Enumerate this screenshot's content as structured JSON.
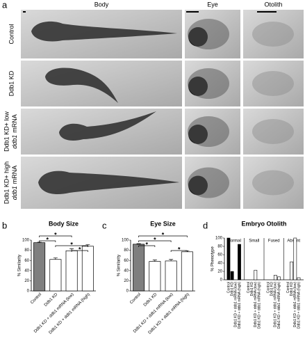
{
  "panel_a": {
    "label": "a",
    "columns": [
      "Body",
      "Eye",
      "Otolith"
    ],
    "rows": [
      {
        "text": "Control"
      },
      {
        "text": "Ddb1 KD"
      },
      {
        "text": "Ddb1 KD+ low",
        "italic": "ddb1",
        "rest": "mRNA"
      },
      {
        "text": "Ddb1 KD+ high",
        "italic": "ddb1",
        "rest": "mRNA"
      }
    ]
  },
  "chart_data": [
    {
      "type": "bar",
      "panel": "b",
      "title": "Body Size",
      "ylabel": "% Similarity",
      "categories": [
        "Control",
        "Ddb1 KD",
        "Ddb1 KD + ddb1 mRNA (low)",
        "Ddb1 KD + ddb1 mRNA (high)"
      ],
      "values": [
        95,
        62,
        79,
        88
      ],
      "errors": [
        1,
        3,
        4,
        3
      ],
      "colors": [
        "#7f7f7f",
        "#ffffff",
        "#ffffff",
        "#ffffff"
      ],
      "ylim": [
        0,
        100
      ],
      "yticks": [
        0,
        20,
        40,
        60,
        80,
        100
      ],
      "significance": [
        {
          "between": [
            0,
            2
          ],
          "label": "*"
        },
        {
          "between": [
            0,
            1
          ],
          "label": "*"
        },
        {
          "between": [
            1,
            3
          ],
          "label": "*"
        },
        {
          "between": [
            2,
            3
          ],
          "label": "*"
        }
      ]
    },
    {
      "type": "bar",
      "panel": "c",
      "title": "Eye Size",
      "ylabel": "% Similarity",
      "categories": [
        "Control",
        "Ddb1 KD",
        "Ddb1 KD + ddb1 mRNA (low)",
        "Ddb1 KD + ddb1 mRNA (high)"
      ],
      "values": [
        92,
        58,
        59,
        77
      ],
      "errors": [
        1,
        3,
        3,
        2
      ],
      "colors": [
        "#7f7f7f",
        "#ffffff",
        "#ffffff",
        "#ffffff"
      ],
      "ylim": [
        0,
        100
      ],
      "yticks": [
        0,
        20,
        40,
        60,
        80,
        100
      ],
      "significance": [
        {
          "between": [
            0,
            3
          ],
          "label": "*"
        },
        {
          "between": [
            0,
            2
          ],
          "label": "*"
        },
        {
          "between": [
            0,
            1
          ],
          "label": "*"
        },
        {
          "between": [
            2,
            3
          ],
          "label": "*"
        }
      ]
    },
    {
      "type": "grouped_bar",
      "panel": "d",
      "title": "Embryo Otolith",
      "ylabel": "% Phenotype",
      "categories": [
        "Control",
        "Ddb1 KD",
        "Ddb1 KD + ddb1 mRNA (low)",
        "Ddb1 KD + ddb1 mRNA (high)"
      ],
      "series": [
        {
          "name": "Normal",
          "color": "#000000",
          "values": [
            100,
            20,
            0,
            85
          ]
        },
        {
          "name": "Small",
          "color": "#ffffff",
          "values": [
            0,
            0,
            23,
            0
          ]
        },
        {
          "name": "Fused",
          "color": "#ffffff",
          "values": [
            0,
            0,
            11,
            7
          ]
        },
        {
          "name": "Absent",
          "color": "#ffffff",
          "values": [
            0,
            43,
            100,
            5
          ]
        }
      ],
      "ylim": [
        0,
        100
      ],
      "yticks": [
        0,
        20,
        40,
        60,
        80,
        100
      ]
    }
  ]
}
